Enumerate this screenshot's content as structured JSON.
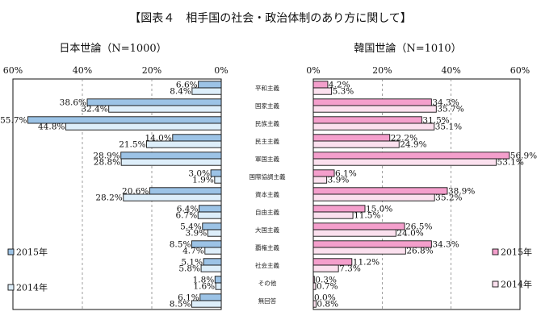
{
  "chart_data": {
    "type": "bar",
    "title": "【図表４　相手国の社会・政治体制のあり方に関して】",
    "colors": {
      "y2015_japan": "#9cc3e6",
      "y2014_japan": "#ddeefa",
      "y2015_korea": "#f49fcc",
      "y2014_korea": "#fbe0ee",
      "edge": "#111111"
    },
    "categories": [
      "平和主義",
      "国家主義",
      "民族主義",
      "民主主義",
      "軍国主義",
      "国際協調主義",
      "資本主義",
      "自由主義",
      "大国主義",
      "覇権主義",
      "社会主義",
      "その他",
      "無回答"
    ],
    "panels": [
      {
        "name": "japan",
        "subtitle": "日本世論（N=1000）",
        "ticks": [
          "60%",
          "40%",
          "20%",
          "0%"
        ],
        "xlim": [
          0,
          60
        ],
        "direction": "leftward",
        "series": [
          {
            "name": "2015年",
            "labels": [
              "6.6%",
              "38.6%",
              "55.7%",
              "14.0%",
              "28.9%",
              "3.0%",
              "20.6%",
              "6.4%",
              "5.4%",
              "8.5%",
              "5.1%",
              "1.8%",
              "6.1%"
            ],
            "values": [
              6.6,
              38.6,
              55.7,
              14.0,
              28.9,
              3.0,
              20.6,
              6.4,
              5.4,
              8.5,
              5.1,
              1.8,
              6.1
            ]
          },
          {
            "name": "2014年",
            "labels": [
              "8.4%",
              "32.4%",
              "44.8%",
              "21.5%",
              "28.8%",
              "1.9%",
              "28.2%",
              "6.7%",
              "3.9%",
              "4.7%",
              "5.8%",
              "1.6%",
              "8.5%"
            ],
            "values": [
              8.4,
              32.4,
              44.8,
              21.5,
              28.8,
              1.9,
              28.2,
              6.7,
              3.9,
              4.7,
              5.8,
              1.6,
              8.5
            ]
          }
        ]
      },
      {
        "name": "korea",
        "subtitle": "韓国世論（N=1010）",
        "ticks": [
          "0%",
          "20%",
          "40%",
          "60%"
        ],
        "xlim": [
          0,
          60
        ],
        "direction": "rightward",
        "series": [
          {
            "name": "2015年",
            "labels": [
              "4.2%",
              "34.3%",
              "31.5%",
              "22.2%",
              "56.9%",
              "6.1%",
              "38.9%",
              "15.0%",
              "26.5%",
              "34.3%",
              "11.2%",
              "0.3%",
              "0.0%"
            ],
            "values": [
              4.2,
              34.3,
              31.5,
              22.2,
              56.9,
              6.1,
              38.9,
              15.0,
              26.5,
              34.3,
              11.2,
              0.3,
              0.0
            ]
          },
          {
            "name": "2014年",
            "labels": [
              "5.3%",
              "35.7%",
              "35.1%",
              "24.9%",
              "53.1%",
              "3.9%",
              "35.2%",
              "11.5%",
              "24.0%",
              "26.8%",
              "7.3%",
              "0.7%",
              "0.8%"
            ],
            "values": [
              5.3,
              35.7,
              35.1,
              24.9,
              53.1,
              3.9,
              35.2,
              11.5,
              24.0,
              26.8,
              7.3,
              0.7,
              0.8
            ]
          }
        ]
      }
    ],
    "legend": {
      "japan": [
        "2015年",
        "2014年"
      ],
      "korea": [
        "2015年",
        "2014年"
      ],
      "placement": "bottom-left / bottom-right"
    },
    "grid": "vertical-dashed"
  }
}
